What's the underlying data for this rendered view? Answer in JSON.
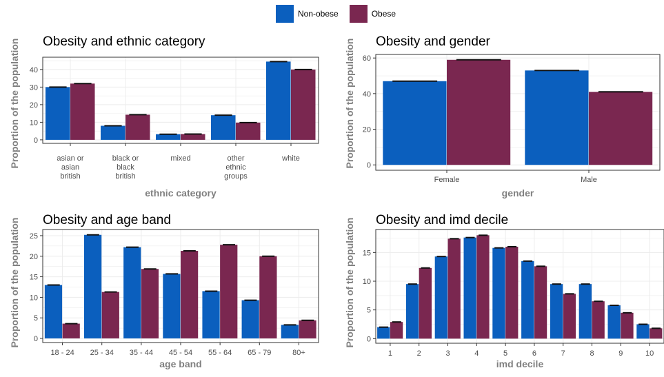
{
  "legend": {
    "items": [
      {
        "label": "Non-obese",
        "color": "#0b5fbe"
      },
      {
        "label": "Obese",
        "color": "#7a2750"
      }
    ]
  },
  "colors": {
    "non_obese": "#0b5fbe",
    "obese": "#7a2750",
    "grid": "#ececec",
    "panel_border": "#333333",
    "error_bar": "#111111"
  },
  "chart_data": [
    {
      "type": "bar",
      "title": "Obesity and ethnic category",
      "xlabel": "ethnic category",
      "ylabel": "Proportion of the population",
      "categories": [
        "asian or asian british",
        "black or black british",
        "mixed",
        "other ethnic groups",
        "white"
      ],
      "category_lines": [
        [
          "asian or",
          "asian",
          "british"
        ],
        [
          "black or",
          "black",
          "british"
        ],
        [
          "mixed"
        ],
        [
          "other",
          "ethnic",
          "groups"
        ],
        [
          "white"
        ]
      ],
      "series": [
        {
          "name": "Non-obese",
          "values": [
            30,
            8,
            3.2,
            14,
            44.5
          ]
        },
        {
          "name": "Obese",
          "values": [
            32,
            14.3,
            3.3,
            9.8,
            40
          ]
        }
      ],
      "ylim": [
        -2,
        47
      ],
      "yticks": [
        0,
        10,
        20,
        30,
        40
      ],
      "grid": true
    },
    {
      "type": "bar",
      "title": "Obesity and gender",
      "xlabel": "gender",
      "ylabel": "Proportion of the population",
      "categories": [
        "Female",
        "Male"
      ],
      "category_lines": [
        [
          "Female"
        ],
        [
          "Male"
        ]
      ],
      "series": [
        {
          "name": "Non-obese",
          "values": [
            47,
            53
          ]
        },
        {
          "name": "Obese",
          "values": [
            59,
            41
          ]
        }
      ],
      "ylim": [
        -3,
        62
      ],
      "yticks": [
        0,
        20,
        40,
        60
      ],
      "grid": true
    },
    {
      "type": "bar",
      "title": "Obesity and age band",
      "xlabel": "age band",
      "ylabel": "Proportion of the population",
      "categories": [
        "18 - 24",
        "25 - 34",
        "35 - 44",
        "45 - 54",
        "55 - 64",
        "65 - 79",
        "80+"
      ],
      "category_lines": [
        [
          "18 - 24"
        ],
        [
          "25 - 34"
        ],
        [
          "35 - 44"
        ],
        [
          "45 - 54"
        ],
        [
          "55 - 64"
        ],
        [
          "65 - 79"
        ],
        [
          "80+"
        ]
      ],
      "series": [
        {
          "name": "Non-obese",
          "values": [
            13,
            25.2,
            22.2,
            15.7,
            11.5,
            9.3,
            3.3
          ]
        },
        {
          "name": "Obese",
          "values": [
            3.6,
            11.3,
            16.9,
            21.3,
            22.8,
            20,
            4.4
          ]
        }
      ],
      "ylim": [
        -1,
        26.5
      ],
      "yticks": [
        0,
        5,
        10,
        15,
        20,
        25
      ],
      "grid": true
    },
    {
      "type": "bar",
      "title": "Obesity and imd decile",
      "xlabel": "imd decile",
      "ylabel": "Proportion of the population",
      "categories": [
        "1",
        "2",
        "3",
        "4",
        "5",
        "6",
        "7",
        "8",
        "9",
        "10"
      ],
      "category_lines": [
        [
          "1"
        ],
        [
          "2"
        ],
        [
          "3"
        ],
        [
          "4"
        ],
        [
          "5"
        ],
        [
          "6"
        ],
        [
          "7"
        ],
        [
          "8"
        ],
        [
          "9"
        ],
        [
          "10"
        ]
      ],
      "series": [
        {
          "name": "Non-obese",
          "values": [
            2,
            9.5,
            14.3,
            17.6,
            15.8,
            13.5,
            9.5,
            9.5,
            5.8,
            2.5
          ]
        },
        {
          "name": "Obese",
          "values": [
            2.9,
            12.3,
            17.4,
            18,
            16,
            12.6,
            7.8,
            6.5,
            4.5,
            1.8
          ]
        }
      ],
      "ylim": [
        -0.8,
        19
      ],
      "yticks": [
        0,
        5,
        10,
        15
      ],
      "grid": true
    }
  ]
}
